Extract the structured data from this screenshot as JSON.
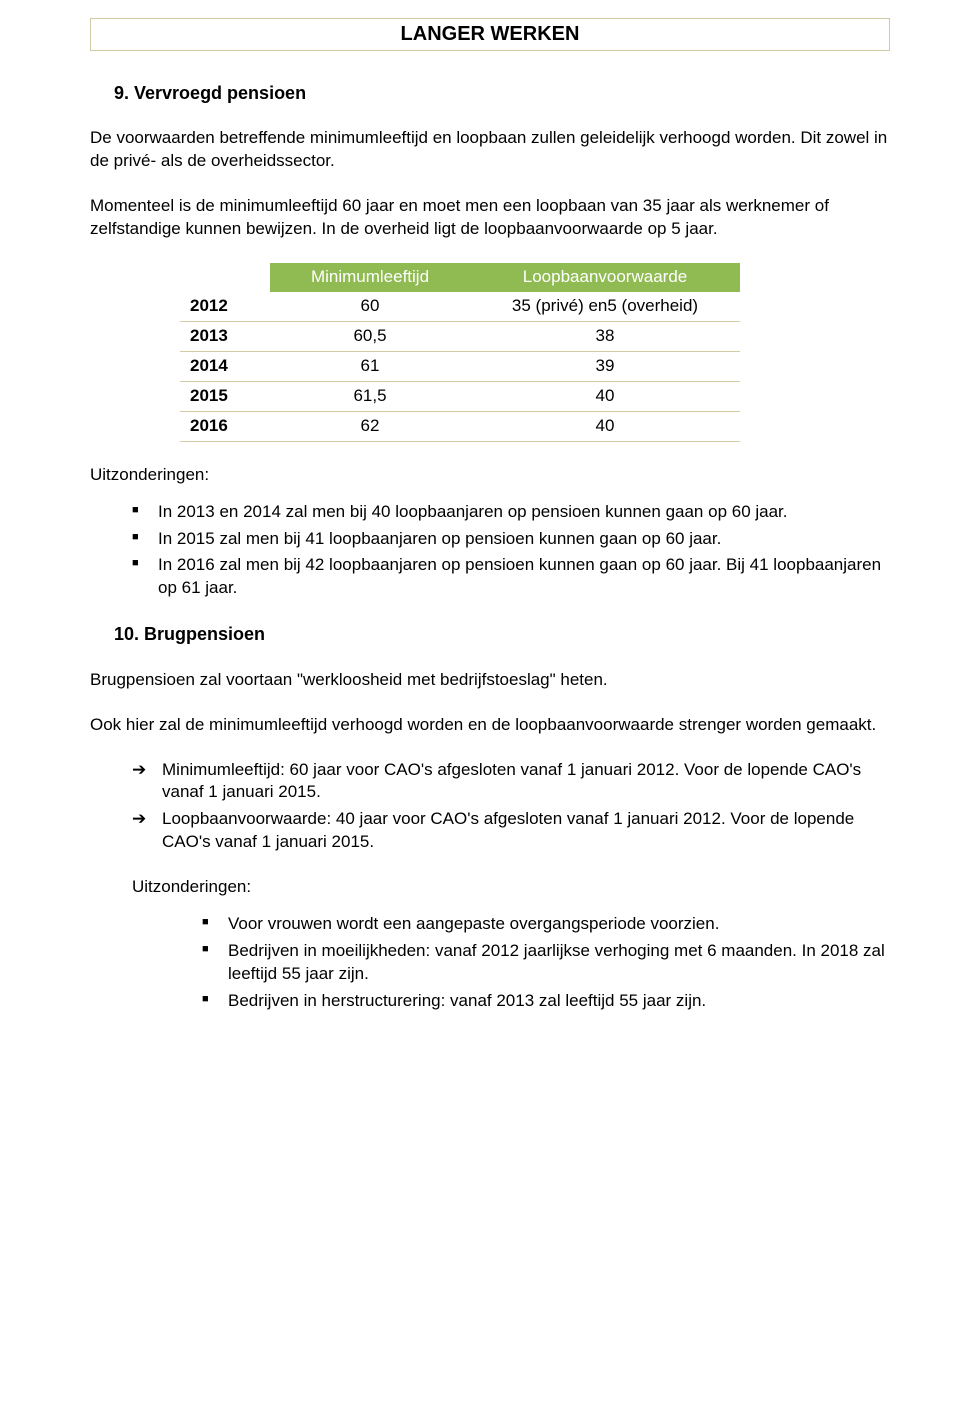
{
  "colors": {
    "header_bg": "#8fbb52",
    "header_text": "#ffffff",
    "row_border": "#d0cba2",
    "title_border": "#d0cba2",
    "body_text": "#000000",
    "background": "#ffffff"
  },
  "title": "LANGER WERKEN",
  "section9": {
    "heading": "9.  Vervroegd pensioen",
    "para1": "De voorwaarden betreffende minimumleeftijd en loopbaan zullen geleidelijk verhoogd worden. Dit zowel in de privé- als de overheidssector.",
    "para2": "Momenteel is de minimumleeftijd 60 jaar en moet men een loopbaan van 35 jaar als werknemer of zelfstandige kunnen bewijzen. In de overheid ligt de loopbaanvoorwaarde op 5 jaar.",
    "table": {
      "type": "table",
      "columns": [
        "",
        "Minimumleeftijd",
        "Loopbaanvoorwaarde"
      ],
      "header_bg": "#8fbb52",
      "header_color": "#ffffff",
      "row_border_color": "#d0cba2",
      "rows": [
        [
          "2012",
          "60",
          "35 (privé) en5 (overheid)"
        ],
        [
          "2013",
          "60,5",
          "38"
        ],
        [
          "2014",
          "61",
          "39"
        ],
        [
          "2015",
          "61,5",
          "40"
        ],
        [
          "2016",
          "62",
          "40"
        ]
      ]
    },
    "exceptions_label": "Uitzonderingen:",
    "exceptions": [
      "In 2013 en 2014 zal men bij 40 loopbaanjaren op pensioen kunnen gaan op 60 jaar.",
      "In 2015 zal men bij 41 loopbaanjaren op pensioen kunnen gaan op 60 jaar.",
      "In 2016 zal men bij 42 loopbaanjaren op pensioen kunnen gaan op 60 jaar. Bij 41 loopbaanjaren op 61 jaar."
    ]
  },
  "section10": {
    "heading": "10.        Brugpensioen",
    "para1": "Brugpensioen zal voortaan \"werkloosheid met bedrijfstoeslag\" heten.",
    "para2": "Ook hier zal de minimumleeftijd verhoogd worden en de loopbaanvoorwaarde strenger worden gemaakt.",
    "arrows": [
      "Minimumleeftijd: 60 jaar voor CAO's afgesloten vanaf 1 januari 2012. Voor de lopende CAO's vanaf 1 januari 2015.",
      "Loopbaanvoorwaarde: 40 jaar voor CAO's afgesloten vanaf 1 januari 2012. Voor de lopende CAO's vanaf 1 januari 2015."
    ],
    "exceptions_label": "Uitzonderingen:",
    "exceptions": [
      "Voor vrouwen wordt een aangepaste overgangsperiode voorzien.",
      "Bedrijven in moeilijkheden: vanaf 2012 jaarlijkse verhoging met 6 maanden. In 2018 zal leeftijd 55 jaar zijn.",
      "Bedrijven in herstructurering: vanaf 2013 zal leeftijd 55 jaar zijn."
    ]
  }
}
